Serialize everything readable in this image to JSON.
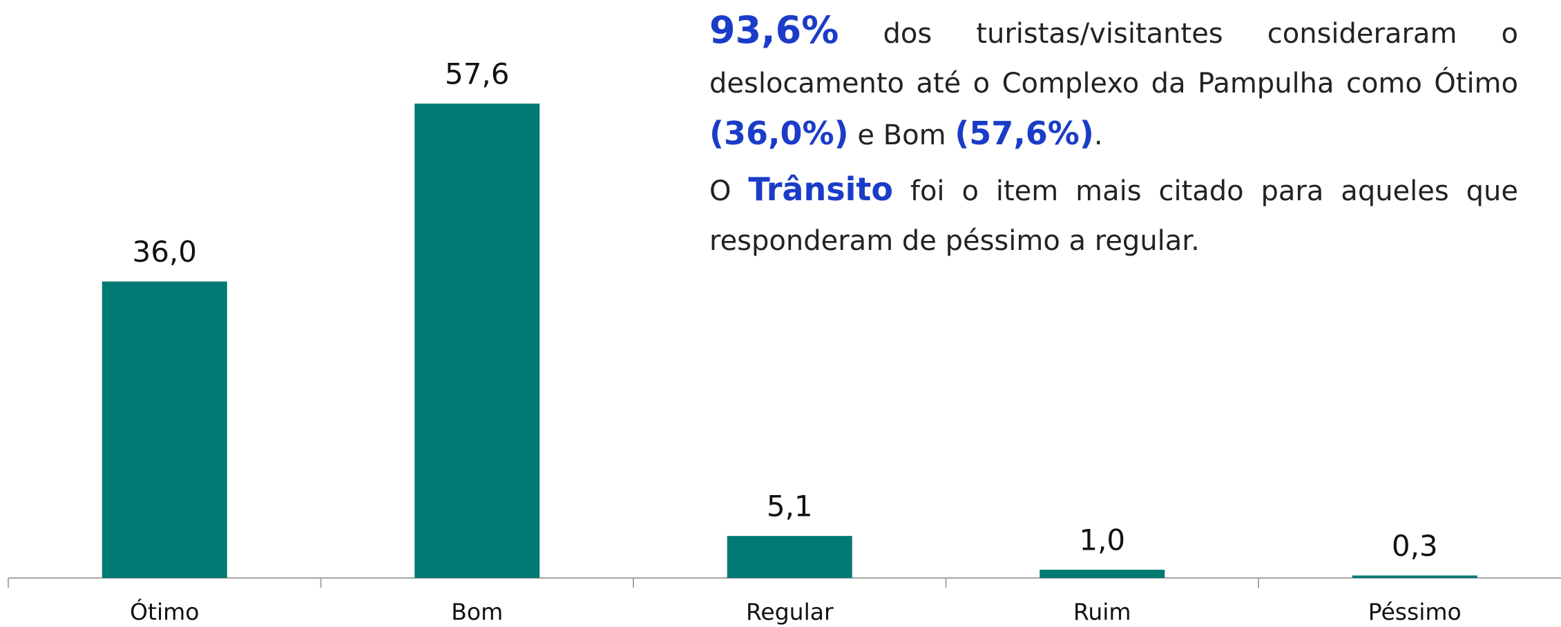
{
  "chart_data": {
    "type": "bar",
    "categories": [
      "Ótimo",
      "Bom",
      "Regular",
      "Ruim",
      "Péssimo"
    ],
    "values": [
      36.0,
      57.6,
      5.1,
      1.0,
      0.3
    ],
    "value_labels": [
      "36,0",
      "57,6",
      "5,1",
      "1,0",
      "0,3"
    ],
    "color": "#007a73"
  },
  "annotation": {
    "paragraphs": [
      [
        "93,6%",
        " dos turistas/visitantes consideraram o deslocamento até o Complexo da Pampulha como Ótimo ",
        "(36,0%)",
        " e Bom ",
        "(57,6%)",
        "."
      ],
      [
        "O ",
        "Trânsito",
        " foi o item mais citado para aqueles que responderam de péssimo a regular."
      ]
    ]
  }
}
